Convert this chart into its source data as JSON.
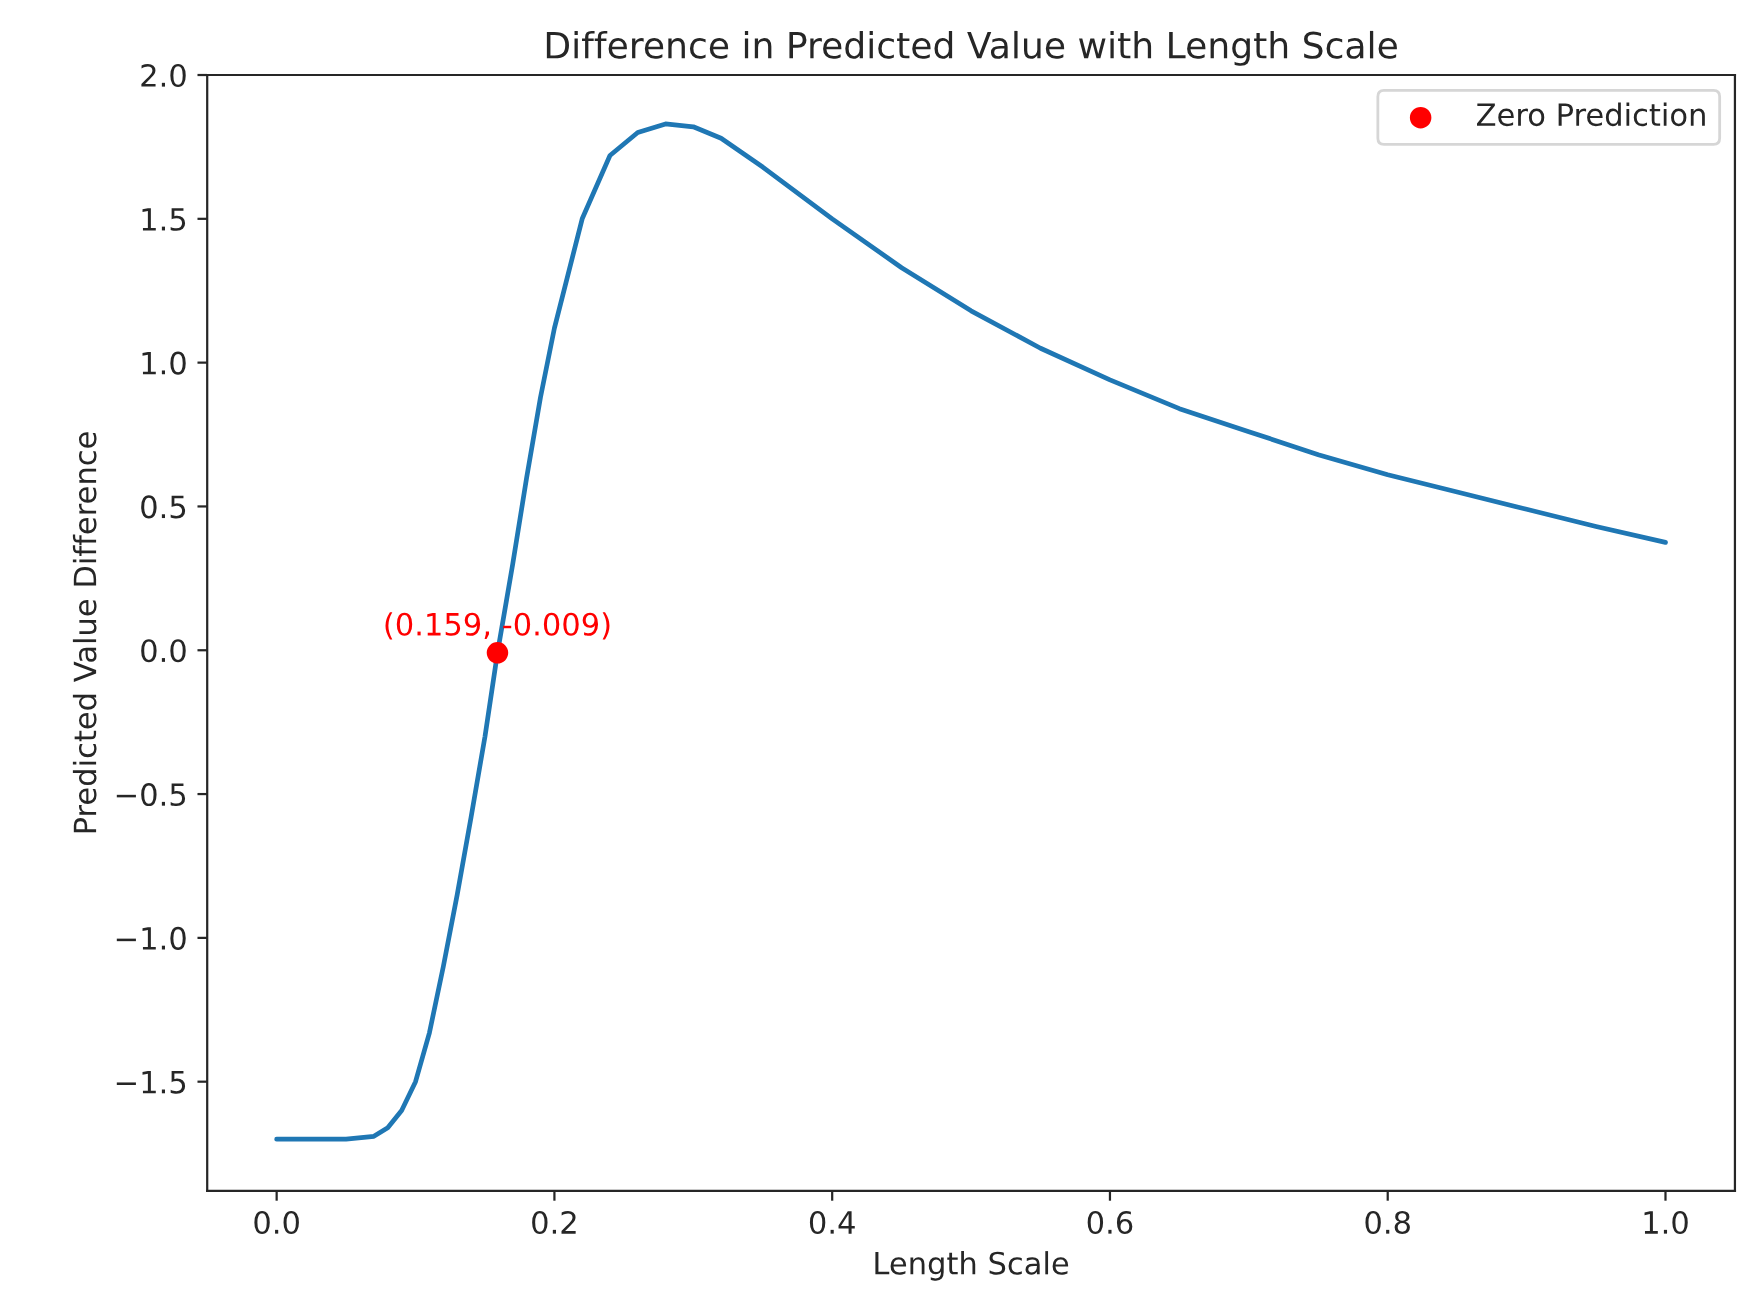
{
  "chart_data": {
    "type": "line",
    "title": "Difference in Predicted Value with Length Scale",
    "xlabel": "Length Scale",
    "ylabel": "Predicted Value Difference",
    "xlim": [
      -0.05,
      1.05
    ],
    "xticks": [
      {
        "value": 0,
        "label": "0.0"
      },
      0.2,
      0.4,
      0.6,
      0.8,
      {
        "value": 1,
        "label": "1.0"
      }
    ],
    "ylim": [
      -1.88,
      2.0
    ],
    "yticks": [
      {
        "value": -1.5,
        "label": "−1.5"
      },
      {
        "value": -1,
        "label": "−1.0"
      },
      {
        "value": -0.5,
        "label": "−0.5"
      },
      {
        "value": 0,
        "label": "0.0"
      },
      0.5,
      {
        "value": 1,
        "label": "1.0"
      },
      1.5,
      {
        "value": 2,
        "label": "2.0"
      }
    ],
    "grid": false,
    "legend": "top right",
    "series": [
      {
        "color": "#1f77b4",
        "x": [
          0.0,
          0.05,
          0.07,
          0.08,
          0.09,
          0.1,
          0.11,
          0.12,
          0.13,
          0.14,
          0.15,
          0.159,
          0.17,
          0.18,
          0.19,
          0.2,
          0.22,
          0.24,
          0.26,
          0.28,
          0.3,
          0.32,
          0.35,
          0.4,
          0.45,
          0.5,
          0.55,
          0.6,
          0.65,
          0.7,
          0.75,
          0.8,
          0.85,
          0.9,
          0.95,
          1.0
        ],
        "values": [
          -1.7,
          -1.7,
          -1.69,
          -1.66,
          -1.6,
          -1.5,
          -1.33,
          -1.1,
          -0.85,
          -0.58,
          -0.3,
          -0.009,
          0.3,
          0.6,
          0.88,
          1.12,
          1.5,
          1.72,
          1.8,
          1.83,
          1.82,
          1.78,
          1.68,
          1.5,
          1.33,
          1.18,
          1.05,
          0.94,
          0.84,
          0.76,
          0.68,
          0.61,
          0.55,
          0.49,
          0.43,
          0.375
        ]
      },
      {
        "type": "scatter",
        "name": "Zero Prediction",
        "color": "#ff0000",
        "x": [
          0.159
        ],
        "values": [
          -0.009
        ]
      }
    ],
    "annotations": [
      {
        "text": "(0.159, -0.009)",
        "x": 0.159,
        "y": -0.009
      }
    ]
  }
}
